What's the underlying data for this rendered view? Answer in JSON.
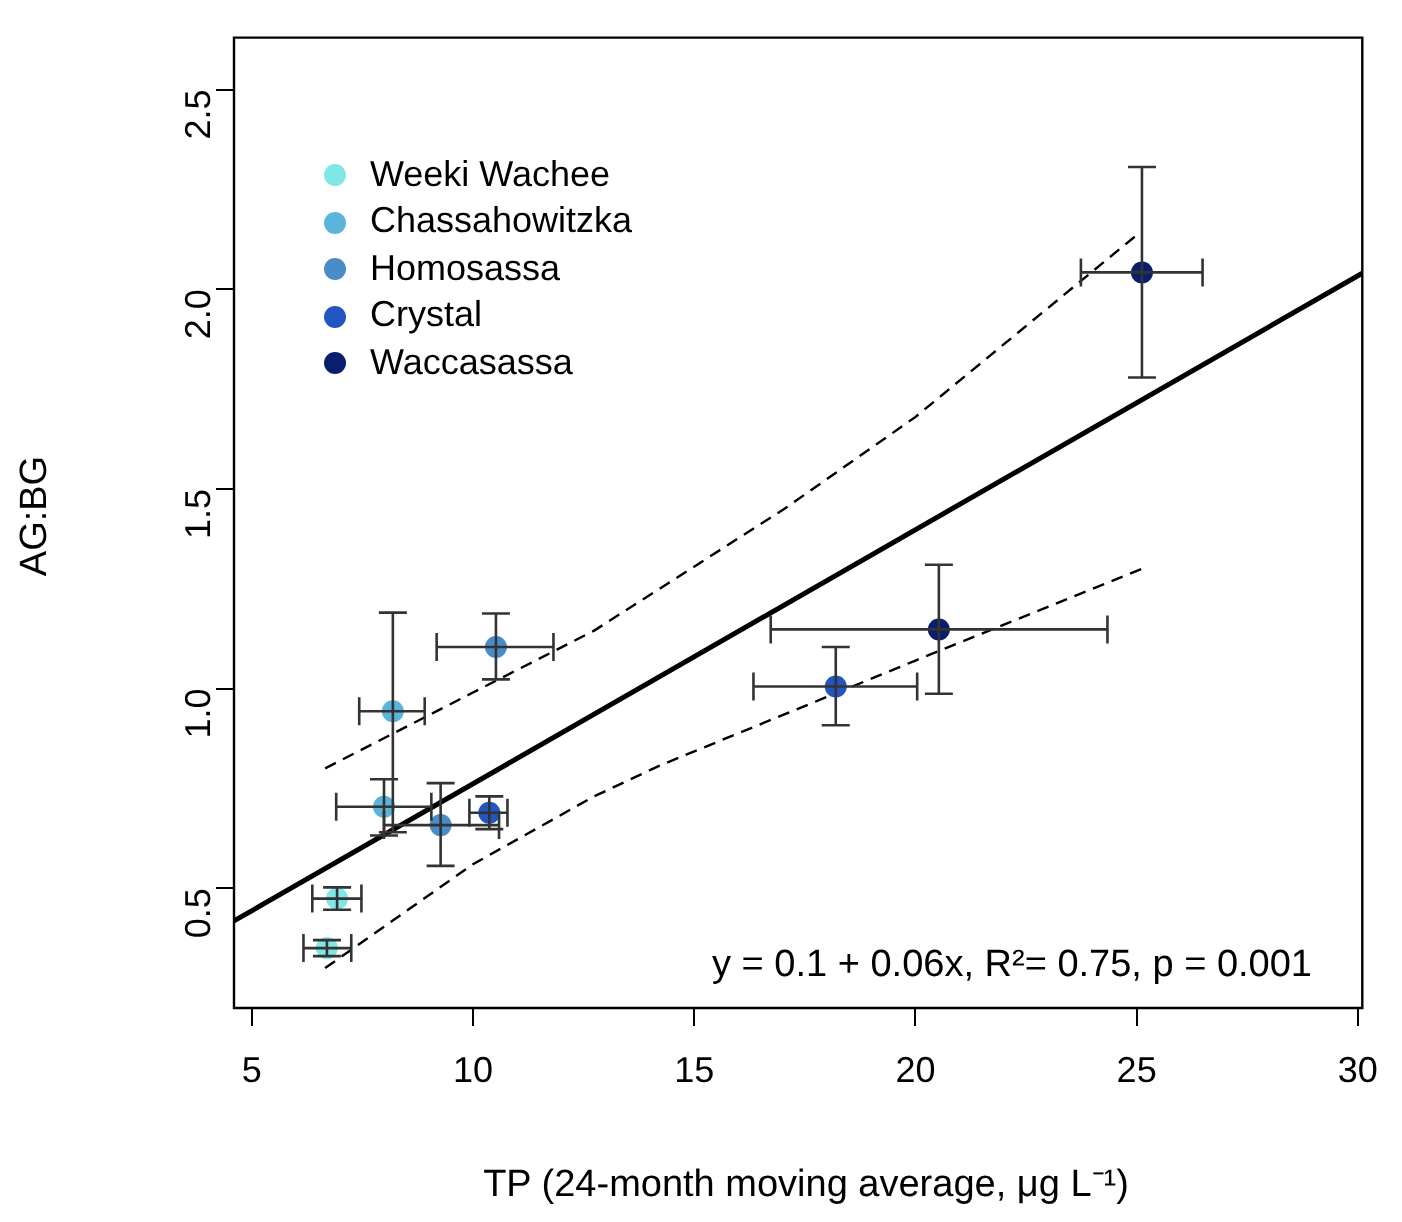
{
  "chart_data": {
    "type": "scatter",
    "xlabel": "TP (24-month moving average, μg L⁻¹)",
    "ylabel": "AG:BG",
    "xlim": [
      4.6,
      30.1
    ],
    "xticks": [
      5,
      10,
      15,
      20,
      25,
      30
    ],
    "ylim": [
      0.2,
      2.63
    ],
    "yticks": [
      0.5,
      {
        "value": 1,
        "label": "1.0"
      },
      1.5,
      {
        "value": 2,
        "label": "2.0"
      },
      2.5
    ],
    "grid": false,
    "legend": "top left",
    "marker": "circle",
    "annotations": [
      "y = 0.1 + 0.06x, R²=  0.75, p = 0.001"
    ],
    "series": [
      {
        "name": "Weeki Wachee",
        "color": "#7fe8e6",
        "x": [
          6.7,
          6.93
        ],
        "values": [
          0.35,
          0.474
        ],
        "errors": [
          [
            0.33,
            0.37
          ],
          [
            0.446,
            0.502
          ]
        ],
        "xerrors": [
          [
            6.17,
            7.25
          ],
          [
            6.37,
            7.48
          ]
        ]
      },
      {
        "name": "Chassahowitzka",
        "color": "#5ab4dc",
        "x": [
          8.19,
          7.99
        ],
        "values": [
          0.943,
          0.704
        ],
        "errors": [
          [
            0.64,
            1.19
          ],
          [
            0.632,
            0.773
          ]
        ],
        "xerrors": [
          [
            7.43,
            8.91
          ],
          [
            6.91,
            9.06
          ]
        ]
      },
      {
        "name": "Homosassa",
        "color": "#4a8cc8",
        "x": [
          10.52,
          9.27
        ],
        "values": [
          1.104,
          0.658
        ],
        "errors": [
          [
            1.023,
            1.188
          ],
          [
            0.556,
            0.763
          ]
        ],
        "xerrors": [
          [
            9.18,
            11.82
          ],
          [
            7.99,
            10.59
          ]
        ]
      },
      {
        "name": "Crystal",
        "color": "#2255c0",
        "x": [
          10.37,
          18.2
        ],
        "values": [
          0.689,
          1.005
        ],
        "errors": [
          [
            0.648,
            0.73
          ],
          [
            0.908,
            1.104
          ]
        ],
        "xerrors": [
          [
            9.92,
            10.78
          ],
          [
            16.34,
            20.04
          ]
        ]
      },
      {
        "name": "Waccasassa",
        "color": "#0a1e6e",
        "x": [
          20.53,
          25.12
        ],
        "values": [
          1.148,
          2.042
        ],
        "errors": [
          [
            0.987,
            1.31
          ],
          [
            1.779,
            2.306
          ]
        ],
        "xerrors": [
          [
            16.73,
            24.34
          ],
          [
            23.74,
            26.49
          ]
        ]
      },
      {
        "type": "line",
        "color": "#000000",
        "x": [
          4.6,
          30.1
        ],
        "values": [
          0.418,
          2.04
        ],
        "marker": "none",
        "line_style": "solid"
      },
      {
        "type": "line",
        "color": "#000000",
        "x": [
          6.66,
          10,
          12.74,
          17.04,
          20,
          25.05
        ],
        "values": [
          0.8,
          0.99,
          1.145,
          1.45,
          1.68,
          2.14
        ],
        "marker": "none",
        "line_style": "dashed"
      },
      {
        "type": "line",
        "color": "#000000",
        "x": [
          6.66,
          10,
          12.74,
          14.22,
          20,
          25.12
        ],
        "values": [
          0.3,
          0.56,
          0.73,
          0.807,
          1.07,
          1.3
        ],
        "marker": "none",
        "line_style": "dashed"
      }
    ]
  }
}
